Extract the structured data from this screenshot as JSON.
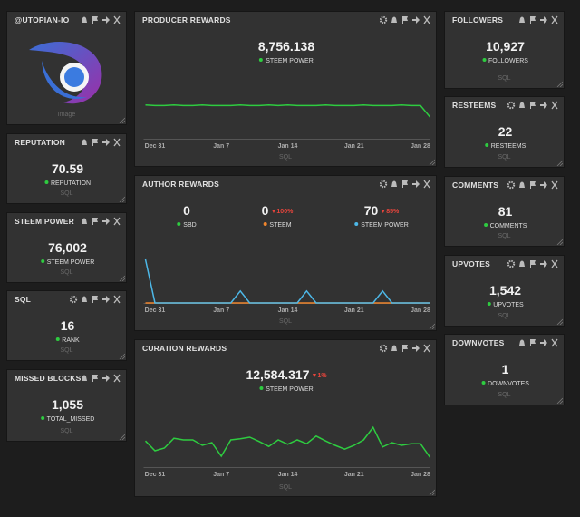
{
  "profile": {
    "title": "@UTOPIAN-IO",
    "caption": "Image"
  },
  "left": [
    {
      "title": "REPUTATION",
      "value": "70.59",
      "legend": "REPUTATION",
      "footer": "SQL",
      "gear": false
    },
    {
      "title": "STEEM POWER",
      "value": "76,002",
      "legend": "STEEM POWER",
      "footer": "SQL",
      "gear": false
    },
    {
      "title": "SQL",
      "value": "16",
      "legend": "RANK",
      "footer": "SQL",
      "gear": true
    },
    {
      "title": "MISSED BLOCKS",
      "value": "1,055",
      "legend": "TOTAL_MISSED",
      "footer": "SQL",
      "gear": false
    }
  ],
  "right": [
    {
      "title": "FOLLOWERS",
      "value": "10,927",
      "legend": "FOLLOWERS",
      "footer": "SQL",
      "gear": false
    },
    {
      "title": "RESTEEMS",
      "value": "22",
      "legend": "RESTEEMS",
      "footer": "SQL",
      "gear": true
    },
    {
      "title": "COMMENTS",
      "value": "81",
      "legend": "COMMENTS",
      "footer": "SQL",
      "gear": true
    },
    {
      "title": "UPVOTES",
      "value": "1,542",
      "legend": "UPVOTES",
      "footer": "SQL",
      "gear": true
    },
    {
      "title": "DOWNVOTES",
      "value": "1",
      "legend": "DOWNVOTES",
      "footer": "SQL",
      "gear": false
    }
  ],
  "charts": [
    {
      "type": "line",
      "title": "PRODUCER REWARDS",
      "footer": "SQL",
      "gear": true,
      "stats": [
        {
          "value": "8,756.138",
          "legend": "STEEM POWER",
          "color": "#2ecc40"
        }
      ],
      "xlim": [
        0,
        30
      ],
      "ylim": [
        0,
        100
      ],
      "xticks": [
        {
          "value": 1,
          "label": "Dec 31"
        },
        {
          "value": 8,
          "label": "Jan 7"
        },
        {
          "value": 15,
          "label": "Jan 14"
        },
        {
          "value": 22,
          "label": "Jan 21"
        },
        {
          "value": 29,
          "label": "Jan 28"
        }
      ],
      "series": [
        {
          "color": "#2ecc40",
          "values": [
            62,
            61,
            61,
            62,
            61,
            61,
            62,
            61,
            61,
            61,
            62,
            61,
            61,
            62,
            61,
            62,
            61,
            61,
            61,
            62,
            61,
            61,
            61,
            62,
            61,
            61,
            61,
            62,
            61,
            61,
            40
          ]
        }
      ]
    },
    {
      "type": "line",
      "title": "AUTHOR REWARDS",
      "footer": "SQL",
      "gear": true,
      "stats": [
        {
          "value": "0",
          "legend": "SBD",
          "color": "#2ecc40"
        },
        {
          "value": "0",
          "delta": "▼100%",
          "legend": "STEEM",
          "color": "#f0852d"
        },
        {
          "value": "70",
          "delta": "▼85%",
          "legend": "STEEM POWER",
          "color": "#4db8e8"
        }
      ],
      "xlim": [
        0,
        30
      ],
      "ylim": [
        0,
        100
      ],
      "xticks": [
        {
          "value": 1,
          "label": "Dec 31"
        },
        {
          "value": 8,
          "label": "Jan 7"
        },
        {
          "value": 15,
          "label": "Jan 14"
        },
        {
          "value": 22,
          "label": "Jan 21"
        },
        {
          "value": 29,
          "label": "Jan 28"
        }
      ],
      "series": [
        {
          "color": "#f0852d",
          "values": [
            0,
            0,
            0,
            0,
            0,
            0,
            0,
            0,
            0,
            0,
            0,
            0,
            0,
            0,
            0,
            0,
            0,
            0,
            0,
            0,
            0,
            0,
            0,
            0,
            0,
            0,
            0,
            0,
            0,
            0,
            0
          ]
        },
        {
          "color": "#4db8e8",
          "values": [
            80,
            0,
            0,
            0,
            0,
            0,
            0,
            0,
            0,
            0,
            22,
            0,
            0,
            0,
            0,
            0,
            0,
            22,
            0,
            0,
            0,
            0,
            0,
            0,
            0,
            22,
            0,
            0,
            0,
            0,
            0
          ]
        }
      ]
    },
    {
      "type": "line",
      "title": "CURATION REWARDS",
      "footer": "SQL",
      "gear": true,
      "stats": [
        {
          "value": "12,584.317",
          "delta": "▼1%",
          "legend": "STEEM POWER",
          "color": "#2ecc40"
        }
      ],
      "xlim": [
        0,
        30
      ],
      "ylim": [
        0,
        100
      ],
      "xticks": [
        {
          "value": 1,
          "label": "Dec 31"
        },
        {
          "value": 8,
          "label": "Jan 7"
        },
        {
          "value": 15,
          "label": "Jan 14"
        },
        {
          "value": 22,
          "label": "Jan 21"
        },
        {
          "value": 29,
          "label": "Jan 28"
        }
      ],
      "series": [
        {
          "color": "#2ecc40",
          "values": [
            48,
            30,
            35,
            53,
            50,
            50,
            40,
            45,
            20,
            50,
            52,
            55,
            47,
            38,
            50,
            42,
            50,
            43,
            57,
            48,
            40,
            33,
            40,
            50,
            73,
            37,
            45,
            40,
            43,
            43,
            18
          ]
        }
      ]
    }
  ]
}
